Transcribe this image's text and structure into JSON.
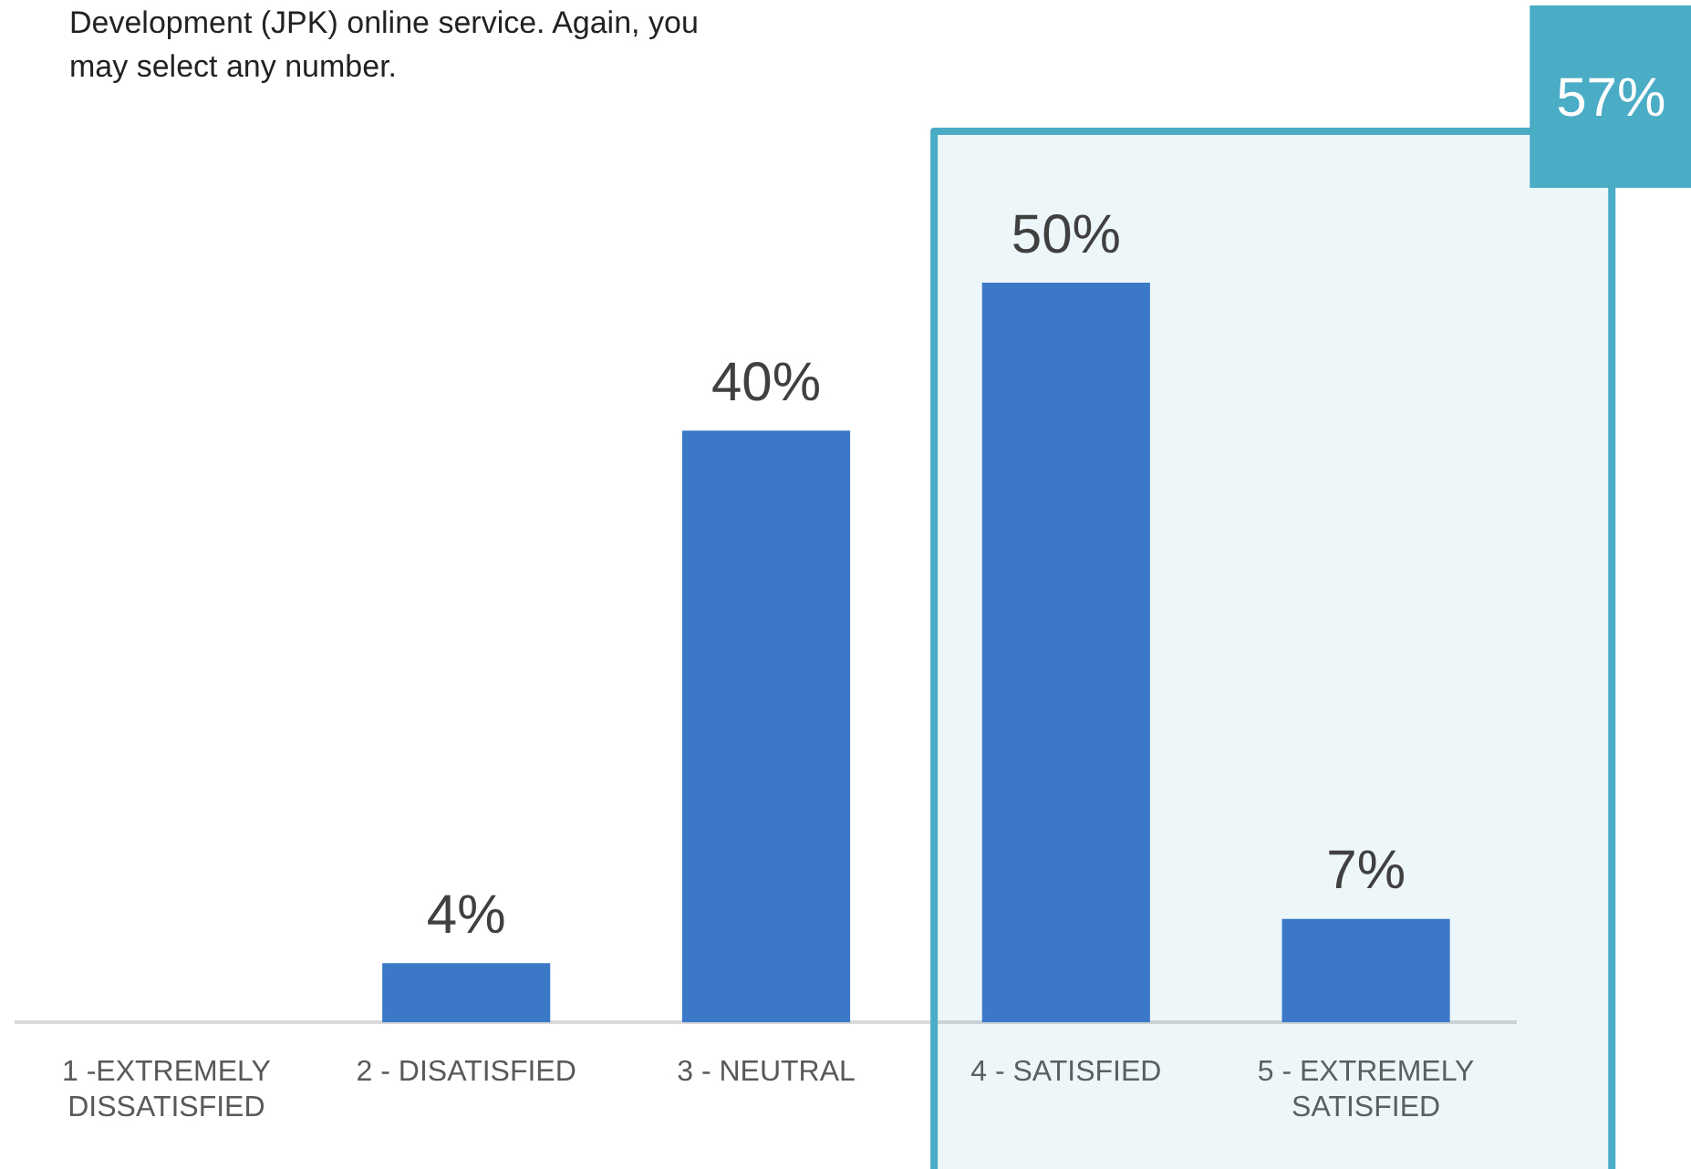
{
  "chart_data": {
    "type": "bar",
    "title": "Development (JPK) online service. Again, you may select any number.",
    "categories": [
      "1 -EXTREMELY DISSATISFIED",
      "2 - DISATISFIED",
      "3 - NEUTRAL",
      "4 - SATISFIED",
      "5 - EXTREMELY SATISFIED"
    ],
    "values": [
      null,
      4,
      40,
      50,
      7
    ],
    "color": "#3b78c8",
    "value_labels": [
      null,
      "4%",
      "40%",
      "50%",
      "7%"
    ],
    "bands": [
      {
        "axis": "x",
        "from": "4 - SATISFIED",
        "to": "5 - EXTREMELY SATISFIED",
        "label": "57%",
        "color": "#4bacc6"
      }
    ]
  }
}
